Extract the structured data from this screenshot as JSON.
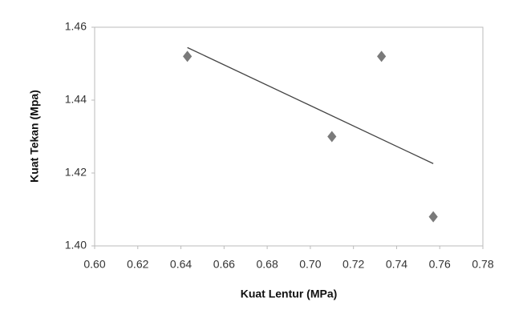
{
  "chart_data": {
    "type": "scatter",
    "x_label": "Kuat Lentur (MPa)",
    "y_label": "Kuat Tekan (Mpa)",
    "series": [
      {
        "color": "#7a7a7a",
        "x": [
          0.643,
          0.71,
          0.733,
          0.757
        ],
        "values": [
          1.452,
          1.43,
          1.452,
          1.408
        ]
      }
    ],
    "trendline": true,
    "trendline_color": "#444444",
    "xlim": [
      0.6,
      0.78
    ],
    "xticks": [
      {
        "value": 0.6,
        "label": "0.60"
      },
      0.62,
      0.64,
      0.66,
      0.68,
      {
        "value": 0.7,
        "label": "0.70"
      },
      0.72,
      0.74,
      0.76,
      0.78
    ],
    "ylim": [
      1.4,
      1.46
    ],
    "yticks": [
      {
        "value": 1.4,
        "label": "1.40"
      },
      1.42,
      1.44,
      1.46
    ],
    "grid": false
  }
}
